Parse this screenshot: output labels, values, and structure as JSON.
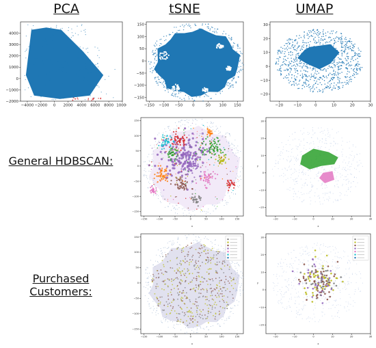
{
  "column_titles": [
    "PCA",
    "tSNE",
    "UMAP"
  ],
  "row_titles": [
    "General HDBSCAN:",
    "Purchased Customers:"
  ],
  "colors": {
    "base_blue": "#1f77b4",
    "cluster_palette": [
      "#9467bd",
      "#2ca02c",
      "#d62728",
      "#ff7f0e",
      "#8c564b",
      "#e377c2",
      "#bcbd22",
      "#17becf",
      "#7f7f7f",
      "#aec7e8",
      "#98df8a",
      "#ff9896",
      "#c5b0d5",
      "#ffbb78"
    ],
    "purchased_palette": [
      "#7f7f7f",
      "#bcbd22",
      "#8c564b",
      "#9467bd",
      "#e377c2",
      "#17becf",
      "#1f77b4"
    ]
  },
  "chart_data": [
    {
      "id": "pca",
      "type": "scatter",
      "title": "PCA",
      "xlim": [
        -5000,
        10000
      ],
      "ylim": [
        -2000,
        5000
      ],
      "xticks": [
        -4000,
        -2000,
        0,
        2000,
        4000,
        6000,
        8000,
        10000
      ],
      "yticks": [
        -2000,
        -1000,
        0,
        1000,
        2000,
        3000,
        4000
      ],
      "tick_labels_x": [
        "−4000",
        "−2000",
        "0",
        "2000",
        "4000",
        "6000",
        "8000",
        "10000"
      ],
      "tick_labels_y": [
        "−2000",
        "−1000",
        "0",
        "1000",
        "2000",
        "3000",
        "4000"
      ],
      "shape": "wedge",
      "color": "#1f77b4"
    },
    {
      "id": "tsne",
      "type": "scatter",
      "title": "tSNE",
      "xlim": [
        -160,
        170
      ],
      "ylim": [
        -165,
        160
      ],
      "xticks": [
        -150,
        -100,
        -50,
        0,
        50,
        100,
        150
      ],
      "yticks": [
        -150,
        -100,
        -50,
        0,
        50,
        100,
        150
      ],
      "tick_labels_x": [
        "−150",
        "−100",
        "−50",
        "0",
        "50",
        "100",
        "150"
      ],
      "tick_labels_y": [
        "−150",
        "−100",
        "−50",
        "0",
        "50",
        "100",
        "150"
      ],
      "shape": "disc",
      "color": "#1f77b4"
    },
    {
      "id": "umap",
      "type": "scatter",
      "title": "UMAP",
      "xlim": [
        -25,
        30
      ],
      "ylim": [
        -25,
        32
      ],
      "xticks": [
        -20,
        -10,
        0,
        10,
        20,
        30
      ],
      "yticks": [
        -20,
        -10,
        0,
        10,
        20,
        30
      ],
      "tick_labels_x": [
        "−20",
        "−10",
        "0",
        "10",
        "20",
        "30"
      ],
      "tick_labels_y": [
        "−20",
        "−10",
        "0",
        "10",
        "20",
        "30"
      ],
      "shape": "ring",
      "color": "#1f77b4"
    },
    {
      "id": "tsne_hdbscan",
      "type": "scatter",
      "title": "",
      "xlim": [
        -160,
        170
      ],
      "ylim": [
        -165,
        160
      ],
      "xticks": [
        -150,
        -100,
        -50,
        0,
        50,
        100,
        150
      ],
      "yticks": [
        -150,
        -100,
        -50,
        0,
        50,
        100,
        150
      ],
      "tick_labels_x": [
        "−150",
        "−100",
        "−50",
        "0",
        "50",
        "100",
        "150"
      ],
      "tick_labels_y": [
        "−150",
        "−100",
        "−50",
        "0",
        "50",
        "100",
        "150"
      ],
      "shape": "clusters",
      "xlabel": "x"
    },
    {
      "id": "umap_hdbscan",
      "type": "scatter",
      "title": "",
      "xlim": [
        -25,
        30
      ],
      "ylim": [
        -25,
        32
      ],
      "xticks": [
        -20,
        -10,
        0,
        10,
        20,
        30
      ],
      "yticks": [
        -20,
        -10,
        0,
        10,
        20,
        30
      ],
      "tick_labels_x": [
        "−20",
        "−10",
        "0",
        "10",
        "20",
        "30"
      ],
      "tick_labels_y": [
        "−20",
        "−10",
        "0",
        "10",
        "20",
        "30"
      ],
      "shape": "umap_clusters",
      "xlabel": "x",
      "ylabel": "y"
    },
    {
      "id": "tsne_purchased",
      "type": "scatter",
      "title": "",
      "xlim": [
        -160,
        170
      ],
      "ylim": [
        -165,
        160
      ],
      "xticks": [
        -150,
        -100,
        -50,
        0,
        50,
        100,
        150
      ],
      "yticks": [
        -150,
        -100,
        -50,
        0,
        50,
        100,
        150
      ],
      "tick_labels_x": [
        "−150",
        "−100",
        "−50",
        "0",
        "50",
        "100",
        "150"
      ],
      "tick_labels_y": [
        "−150",
        "−100",
        "−50",
        "0",
        "50",
        "100",
        "150"
      ],
      "shape": "purchased",
      "xlabel": "x",
      "legend_placement": "top-right",
      "legend_entries": 7
    },
    {
      "id": "umap_purchased",
      "type": "scatter",
      "title": "",
      "xlim": [
        -25,
        30
      ],
      "ylim": [
        -25,
        32
      ],
      "xticks": [
        -20,
        -10,
        0,
        10,
        20,
        30
      ],
      "yticks": [
        -20,
        -10,
        0,
        10,
        20,
        30
      ],
      "tick_labels_x": [
        "−20",
        "−10",
        "0",
        "10",
        "20",
        "30"
      ],
      "tick_labels_y": [
        "−20",
        "−10",
        "0",
        "10",
        "20",
        "30"
      ],
      "shape": "umap_purchased",
      "xlabel": "x",
      "ylabel": "y",
      "legend_placement": "top-right",
      "legend_entries": 7
    }
  ]
}
